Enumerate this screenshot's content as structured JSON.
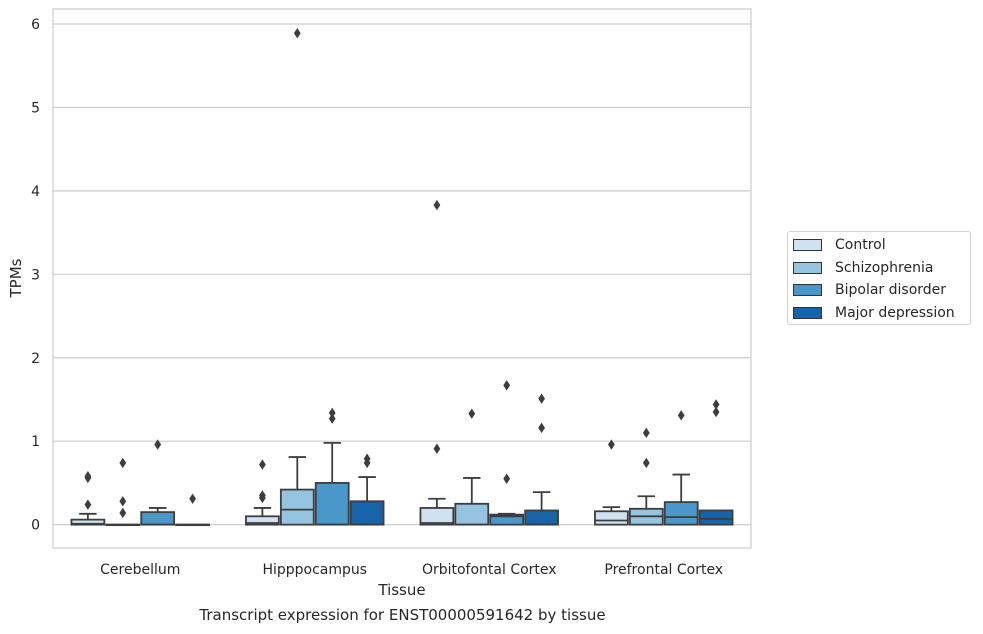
{
  "chart_data": {
    "type": "box",
    "title": "Transcript expression for ENST00000591642 by tissue",
    "xlabel": "Tissue",
    "ylabel": "TPMs",
    "ylim": [
      -0.28,
      6.18
    ],
    "yticks": [
      0,
      1,
      2,
      3,
      4,
      5,
      6
    ],
    "grid": true,
    "legend_position": "right",
    "categories": [
      "Cerebellum",
      "Hipppocampus",
      "Orbitofontal Cortex",
      "Prefrontal Cortex"
    ],
    "series": [
      {
        "name": "Control",
        "color": "#d0e1f2",
        "boxes": [
          {
            "q1": 0.0,
            "median": 0.01,
            "q3": 0.06,
            "whisker_low": 0.0,
            "whisker_high": 0.13,
            "outliers": [
              0.24,
              0.56,
              0.58
            ]
          },
          {
            "q1": 0.0,
            "median": 0.02,
            "q3": 0.1,
            "whisker_low": 0.0,
            "whisker_high": 0.2,
            "outliers": [
              0.32,
              0.35,
              0.72
            ]
          },
          {
            "q1": 0.0,
            "median": 0.02,
            "q3": 0.2,
            "whisker_low": 0.0,
            "whisker_high": 0.31,
            "outliers": [
              0.91,
              3.83
            ]
          },
          {
            "q1": 0.0,
            "median": 0.05,
            "q3": 0.16,
            "whisker_low": 0.0,
            "whisker_high": 0.21,
            "outliers": [
              0.96
            ]
          }
        ]
      },
      {
        "name": "Schizophrenia",
        "color": "#94c4df",
        "boxes": [
          {
            "q1": 0.0,
            "median": 0.0,
            "q3": 0.0,
            "whisker_low": 0.0,
            "whisker_high": 0.0,
            "outliers": [
              0.14,
              0.28,
              0.74
            ]
          },
          {
            "q1": 0.0,
            "median": 0.18,
            "q3": 0.42,
            "whisker_low": 0.0,
            "whisker_high": 0.81,
            "outliers": [
              5.89
            ]
          },
          {
            "q1": 0.0,
            "median": 0.0,
            "q3": 0.25,
            "whisker_low": 0.0,
            "whisker_high": 0.56,
            "outliers": [
              1.33
            ]
          },
          {
            "q1": 0.0,
            "median": 0.1,
            "q3": 0.19,
            "whisker_low": 0.0,
            "whisker_high": 0.34,
            "outliers": [
              0.74,
              1.1
            ]
          }
        ]
      },
      {
        "name": "Bipolar disorder",
        "color": "#4a98c9",
        "boxes": [
          {
            "q1": 0.0,
            "median": 0.0,
            "q3": 0.15,
            "whisker_low": 0.0,
            "whisker_high": 0.2,
            "outliers": [
              0.96
            ]
          },
          {
            "q1": 0.0,
            "median": 0.0,
            "q3": 0.5,
            "whisker_low": 0.0,
            "whisker_high": 0.98,
            "outliers": [
              1.27,
              1.34
            ]
          },
          {
            "q1": 0.0,
            "median": 0.1,
            "q3": 0.12,
            "whisker_low": 0.0,
            "whisker_high": 0.13,
            "outliers": [
              0.55,
              1.67
            ]
          },
          {
            "q1": 0.0,
            "median": 0.09,
            "q3": 0.27,
            "whisker_low": 0.0,
            "whisker_high": 0.6,
            "outliers": [
              1.31
            ]
          }
        ]
      },
      {
        "name": "Major depression",
        "color": "#1764ab",
        "boxes": [
          {
            "q1": 0.0,
            "median": 0.0,
            "q3": 0.0,
            "whisker_low": 0.0,
            "whisker_high": 0.0,
            "outliers": [
              0.31
            ]
          },
          {
            "q1": 0.0,
            "median": 0.0,
            "q3": 0.28,
            "whisker_low": 0.0,
            "whisker_high": 0.57,
            "outliers": [
              0.74,
              0.79
            ]
          },
          {
            "q1": 0.0,
            "median": 0.0,
            "q3": 0.17,
            "whisker_low": 0.0,
            "whisker_high": 0.39,
            "outliers": [
              1.16,
              1.51
            ]
          },
          {
            "q1": 0.0,
            "median": 0.07,
            "q3": 0.17,
            "whisker_low": 0.0,
            "whisker_high": 0.17,
            "outliers": [
              1.35,
              1.44
            ]
          }
        ]
      }
    ]
  }
}
